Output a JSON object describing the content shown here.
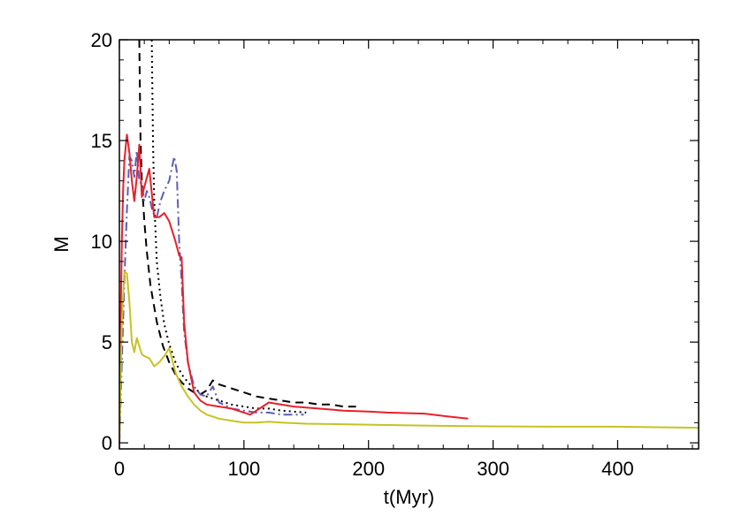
{
  "chart_data": {
    "type": "line",
    "title": "",
    "xlabel": "t(Myr)",
    "ylabel": "M",
    "xlim": [
      0,
      465
    ],
    "ylim": [
      -0.3,
      20
    ],
    "xticks": [
      0,
      100,
      200,
      300,
      400
    ],
    "yticks": [
      0,
      5,
      10,
      15,
      20
    ],
    "grid": false,
    "legend": "none",
    "series": [
      {
        "color": "#000000",
        "style": "dashed",
        "x": [
          16,
          17,
          18,
          20,
          22,
          25,
          30,
          35,
          40,
          45,
          50,
          55,
          60,
          65,
          70,
          75,
          80,
          90,
          100,
          110,
          120,
          130,
          140,
          150,
          160,
          170,
          180,
          190
        ],
        "y": [
          20,
          15.0,
          13.0,
          11.0,
          9.5,
          7.8,
          6.0,
          4.8,
          4.0,
          3.4,
          3.0,
          2.7,
          2.5,
          2.4,
          2.6,
          3.1,
          2.9,
          2.7,
          2.5,
          2.3,
          2.2,
          2.1,
          2.0,
          2.0,
          1.9,
          1.9,
          1.8,
          1.8
        ]
      },
      {
        "color": "#000000",
        "style": "dotted",
        "x": [
          26,
          27,
          28,
          30,
          33,
          36,
          40,
          45,
          50,
          55,
          60,
          65,
          70,
          75,
          80,
          85,
          90,
          100,
          110,
          120,
          130,
          140,
          150
        ],
        "y": [
          20,
          15.0,
          12.0,
          9.0,
          7.2,
          5.9,
          4.9,
          4.0,
          3.4,
          3.0,
          2.7,
          2.5,
          2.3,
          2.2,
          2.1,
          2.0,
          1.9,
          1.8,
          1.7,
          1.7,
          1.6,
          1.55,
          1.5
        ]
      },
      {
        "color": "#5a5fb5",
        "style": "dashdot",
        "x": [
          0,
          2,
          4,
          6,
          8,
          10,
          12,
          14,
          16,
          18,
          20,
          22,
          24,
          27,
          30,
          33,
          36,
          40,
          44,
          46,
          48,
          50,
          52,
          55,
          60,
          65,
          70,
          75,
          80,
          90,
          100,
          110,
          120,
          130,
          140,
          148
        ],
        "y": [
          0,
          4.0,
          8.0,
          11.5,
          14.2,
          14.0,
          13.2,
          14.5,
          13.0,
          12.8,
          12.0,
          12.5,
          12.2,
          11.4,
          11.2,
          12.0,
          12.5,
          13.0,
          14.2,
          13.5,
          10.0,
          8.0,
          5.5,
          4.0,
          2.8,
          2.4,
          2.3,
          2.8,
          2.0,
          1.7,
          1.6,
          1.5,
          1.5,
          1.4,
          1.4,
          1.4
        ]
      },
      {
        "color": "#e8202a",
        "style": "solid",
        "x": [
          0,
          1,
          2,
          3,
          4,
          6,
          8,
          10,
          12,
          14,
          16,
          18,
          20,
          24,
          28,
          32,
          36,
          40,
          45,
          48,
          50,
          52,
          55,
          60,
          65,
          70,
          80,
          90,
          100,
          105,
          110,
          115,
          120,
          140,
          160,
          180,
          200,
          215,
          245,
          265,
          280
        ],
        "y": [
          0,
          6.0,
          10.0,
          12.5,
          14.0,
          15.3,
          14.4,
          13.0,
          12.0,
          13.2,
          14.8,
          12.2,
          12.7,
          13.6,
          11.2,
          11.2,
          11.4,
          11.0,
          10.0,
          9.3,
          9.2,
          6.0,
          4.0,
          2.5,
          2.1,
          1.9,
          1.8,
          1.7,
          1.5,
          1.4,
          1.6,
          1.8,
          2.0,
          1.8,
          1.7,
          1.6,
          1.55,
          1.5,
          1.45,
          1.3,
          1.2
        ]
      },
      {
        "color": "#c7c223",
        "style": "solid",
        "x": [
          0,
          1,
          2,
          4,
          6,
          8,
          10,
          12,
          14,
          16,
          18,
          20,
          24,
          28,
          32,
          36,
          40,
          45,
          50,
          55,
          60,
          65,
          70,
          80,
          90,
          100,
          110,
          120,
          130,
          150,
          200,
          250,
          300,
          350,
          400,
          465
        ],
        "y": [
          0,
          3.0,
          6.0,
          8.5,
          8.4,
          7.0,
          5.0,
          4.5,
          5.2,
          4.8,
          4.4,
          4.3,
          4.2,
          3.8,
          4.0,
          4.3,
          4.7,
          3.5,
          2.8,
          2.3,
          1.9,
          1.6,
          1.4,
          1.2,
          1.1,
          1.0,
          1.0,
          1.05,
          1.0,
          0.95,
          0.9,
          0.85,
          0.82,
          0.8,
          0.8,
          0.75
        ]
      }
    ]
  }
}
